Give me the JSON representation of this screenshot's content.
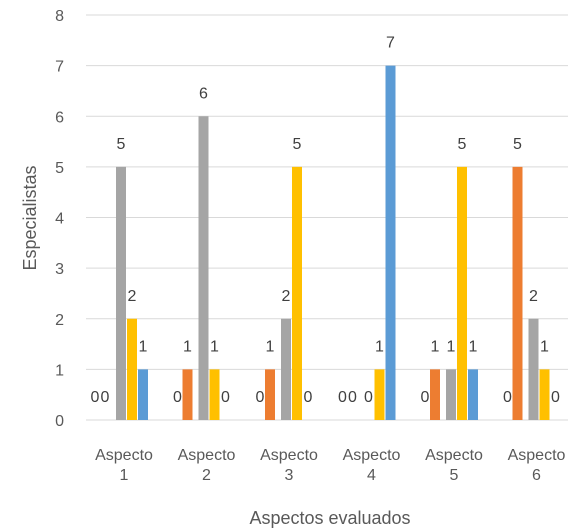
{
  "chart_data": {
    "type": "bar",
    "categories": [
      [
        "Aspecto",
        "1"
      ],
      [
        "Aspecto",
        "2"
      ],
      [
        "Aspecto",
        "3"
      ],
      [
        "Aspecto",
        "4"
      ],
      [
        "Aspecto",
        "5"
      ],
      [
        "Aspecto",
        "6"
      ]
    ],
    "series": [
      {
        "color": "#5b9bd5",
        "values": [
          0,
          0,
          0,
          0,
          0,
          0
        ]
      },
      {
        "color": "#ed7d31",
        "values": [
          0,
          1,
          1,
          0,
          1,
          5
        ]
      },
      {
        "color": "#a5a5a5",
        "values": [
          5,
          6,
          2,
          0,
          1,
          2
        ]
      },
      {
        "color": "#ffc000",
        "values": [
          2,
          1,
          5,
          1,
          5,
          1
        ]
      },
      {
        "color": "#5b9bd5",
        "values": [
          1,
          0,
          0,
          7,
          1,
          0
        ]
      }
    ],
    "xlabel": "Aspectos evaluados",
    "ylabel": "Especialistas",
    "ylim": [
      0,
      8
    ],
    "yticks": [
      "0",
      "1",
      "2",
      "3",
      "4",
      "5",
      "6",
      "7",
      "8"
    ],
    "grid": true,
    "data_labels": true
  }
}
